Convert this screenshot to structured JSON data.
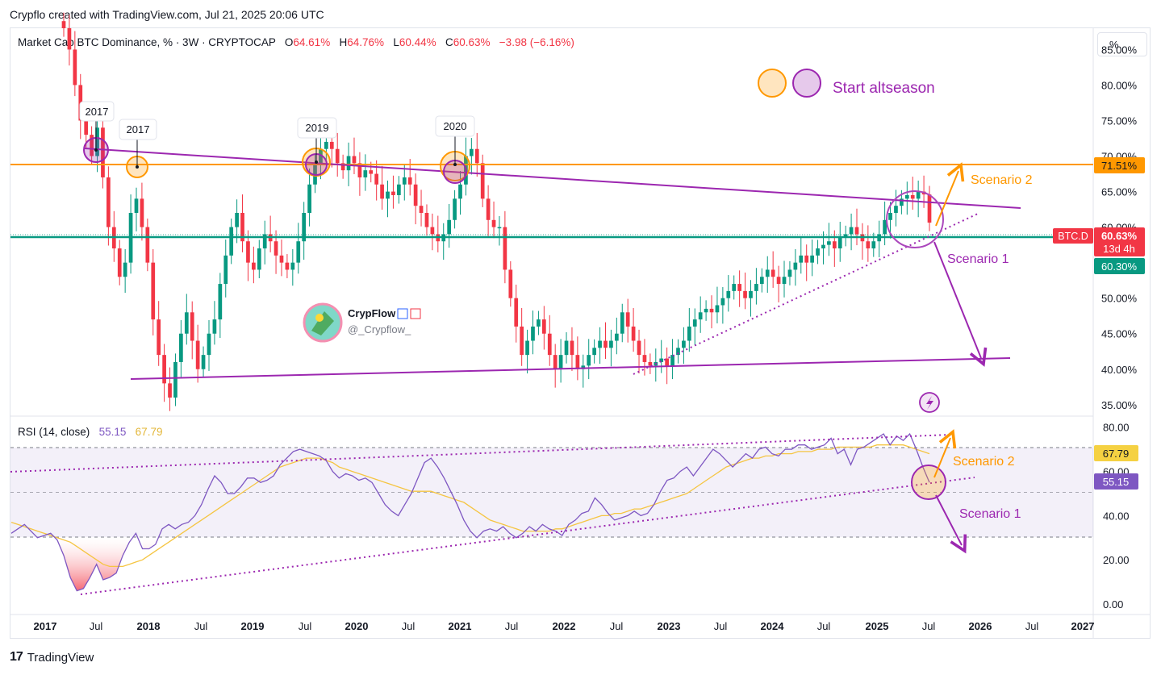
{
  "header": {
    "title": "Crypflo created with TradingView.com, Jul 21, 2025 20:06 UTC"
  },
  "legend": {
    "symbol": "Market Cap BTC Dominance, % · 3W · CRYPTOCAP",
    "o_label": "O",
    "o": "64.61%",
    "h_label": "H",
    "h": "64.76%",
    "l_label": "L",
    "l": "60.44%",
    "c_label": "C",
    "c": "60.63%",
    "change": "−3.98 (−6.16%)"
  },
  "scale_button": "%",
  "rsi_legend": {
    "label": "RSI (14, close)",
    "rsi": "55.15",
    "ma": "67.79"
  },
  "footer": {
    "brand": "TradingView"
  },
  "watermark": {
    "name": "CrypFlow",
    "handle": "@_Crypflow_"
  },
  "annotations": {
    "start_altseason": "Start altseason",
    "scenario2_price": "Scenario 2",
    "scenario1_price": "Scenario 1",
    "scenario2_rsi": "Scenario 2",
    "scenario1_rsi": "Scenario 1",
    "year_callouts": [
      "2017",
      "2017",
      "2019",
      "2020"
    ]
  },
  "price_badges": {
    "orange_level": "71.51%",
    "symbol": "BTC.D",
    "last": "60.63%",
    "countdown": "13d 4h",
    "green_level": "60.30%"
  },
  "rsi_badges": {
    "ma": "67.79",
    "rsi": "55.15"
  },
  "colors": {
    "up": "#089981",
    "down": "#f23645",
    "orange": "#ff9800",
    "purple": "#9c27b0",
    "rsi_line": "#7e57c2",
    "rsi_ma": "#f5c542",
    "green_line": "#089981"
  },
  "chart_data": [
    {
      "type": "candlestick",
      "title": "Market Cap BTC Dominance, % · 3W · CRYPTOCAP",
      "y_ticks": [
        "85.00%",
        "80.00%",
        "75.00%",
        "70.00%",
        "65.00%",
        "60.00%",
        "55.00%",
        "50.00%",
        "45.00%",
        "40.00%",
        "35.00%"
      ],
      "ylim": [
        33.5,
        88
      ],
      "x_ticks": [
        "2017",
        "Jul",
        "2018",
        "Jul",
        "2019",
        "Jul",
        "2020",
        "Jul",
        "2021",
        "Jul",
        "2022",
        "Jul",
        "2023",
        "Jul",
        "2024",
        "Jul",
        "2025",
        "Jul",
        "2026",
        "Jul",
        "2027"
      ],
      "x_tick_bold": [
        true,
        false,
        true,
        false,
        true,
        false,
        true,
        false,
        true,
        false,
        true,
        false,
        true,
        false,
        true,
        false,
        true,
        false,
        true,
        false,
        true
      ],
      "levels": {
        "orange_horizontal": 71.51,
        "green_horizontal": 60.3
      },
      "closes": [
        88.0,
        85.0,
        80.0,
        75.0,
        73.0,
        70.0,
        74.0,
        67.0,
        60.0,
        57.0,
        53.0,
        55.0,
        62.0,
        64.0,
        60.0,
        55.0,
        47.0,
        42.0,
        38.0,
        36.0,
        41.0,
        45.0,
        48.0,
        44.0,
        40.0,
        42.0,
        45.0,
        47.0,
        52.0,
        56.0,
        60.0,
        62.0,
        58.0,
        55.0,
        54.0,
        57.0,
        59.0,
        58.0,
        56.0,
        55.0,
        54.0,
        55.0,
        58.0,
        62.0,
        66.0,
        69.0,
        71.0,
        72.0,
        71.0,
        69.0,
        68.0,
        70.0,
        69.0,
        67.0,
        68.0,
        67.5,
        66.0,
        64.0,
        65.0,
        64.5,
        66.0,
        67.0,
        66.0,
        63.0,
        62.0,
        60.0,
        59.0,
        58.0,
        59.0,
        61.0,
        64.0,
        66.0,
        70.0,
        71.0,
        69.0,
        64.0,
        61.0,
        60.0,
        60.0,
        54.0,
        50.0,
        46.0,
        42.0,
        44.0,
        46.0,
        47.0,
        45.0,
        42.0,
        40.0,
        42.0,
        44.0,
        42.0,
        40.0,
        40.5,
        42.0,
        43.0,
        44.0,
        43.0,
        44.0,
        45.0,
        48.0,
        46.0,
        44.0,
        42.0,
        41.0,
        40.5,
        41.0,
        41.5,
        40.5,
        42.0,
        43.0,
        44.0,
        46.0,
        47.0,
        48.0,
        48.5,
        48.0,
        49.0,
        50.0,
        51.0,
        52.0,
        51.0,
        50.0,
        51.0,
        52.0,
        53.0,
        54.0,
        53.0,
        52.0,
        53.0,
        54.0,
        55.0,
        56.0,
        55.0,
        56.0,
        57.0,
        57.5,
        58.0,
        57.0,
        58.5,
        59.0,
        60.0,
        59.0,
        58.0,
        57.0,
        58.0,
        59.0,
        61.0,
        62.0,
        63.0,
        64.0,
        64.5,
        64.0,
        65.0,
        64.6,
        60.63
      ]
    },
    {
      "type": "line",
      "title": "RSI (14, close)",
      "y_ticks": [
        "80.00",
        "60.00",
        "40.00",
        "20.00",
        "0.00"
      ],
      "ylim": [
        0,
        81
      ],
      "bands": [
        30,
        50,
        70
      ],
      "series": [
        {
          "name": "RSI",
          "last": 55.15,
          "values": [
            32,
            34,
            36,
            33,
            30,
            31,
            32,
            29,
            22,
            12,
            6,
            7,
            12,
            18,
            11,
            12,
            14,
            22,
            28,
            32,
            25,
            25,
            27,
            34,
            36,
            34,
            36,
            37,
            40,
            45,
            52,
            58,
            55,
            50,
            50,
            53,
            57,
            57,
            55,
            56,
            58,
            63,
            66,
            69,
            70,
            69,
            68,
            67,
            65,
            60,
            57,
            59,
            58,
            56,
            57,
            55,
            50,
            45,
            42,
            40,
            45,
            50,
            57,
            64,
            66,
            62,
            57,
            51,
            45,
            38,
            33,
            30,
            33,
            34,
            33,
            35,
            32,
            30,
            32,
            35,
            33,
            36,
            34,
            33,
            31,
            36,
            38,
            41,
            42,
            48,
            45,
            41,
            38,
            39,
            40,
            42,
            40,
            41,
            45,
            51,
            56,
            57,
            60,
            62,
            58,
            62,
            66,
            70,
            68,
            65,
            62,
            65,
            68,
            66,
            70,
            71,
            68,
            67,
            70,
            70,
            72,
            72,
            70,
            71,
            72,
            75,
            68,
            70,
            63,
            70,
            71,
            73,
            75,
            77,
            72,
            76,
            74,
            77,
            70,
            62,
            55
          ],
          "ma_values": [
            37,
            36,
            35,
            34,
            33,
            32,
            31,
            30,
            29,
            28,
            26,
            24,
            22,
            20,
            18,
            17,
            17,
            17,
            18,
            19,
            20,
            22,
            24,
            26,
            28,
            30,
            32,
            34,
            36,
            38,
            40,
            42,
            44,
            46,
            48,
            50,
            52,
            54,
            56,
            58,
            60,
            62,
            63,
            64,
            65,
            66,
            66,
            66,
            65,
            64,
            62,
            61,
            60,
            59,
            58,
            57,
            56,
            55,
            54,
            53,
            52,
            51,
            51,
            51,
            51,
            50,
            49,
            48,
            47,
            46,
            44,
            42,
            40,
            38,
            37,
            36,
            35,
            34,
            33,
            33,
            33,
            33,
            33,
            34,
            34,
            35,
            36,
            37,
            38,
            39,
            40,
            40,
            41,
            41,
            42,
            43,
            43,
            44,
            45,
            46,
            47,
            48,
            49,
            50,
            52,
            54,
            56,
            58,
            60,
            62,
            63,
            64,
            65,
            66,
            66,
            67,
            67,
            68,
            68,
            68,
            69,
            69,
            69,
            70,
            70,
            70,
            71,
            71,
            71,
            71,
            71,
            71,
            72,
            72,
            72,
            72,
            72,
            71,
            70,
            69,
            68
          ]
        }
      ]
    }
  ]
}
